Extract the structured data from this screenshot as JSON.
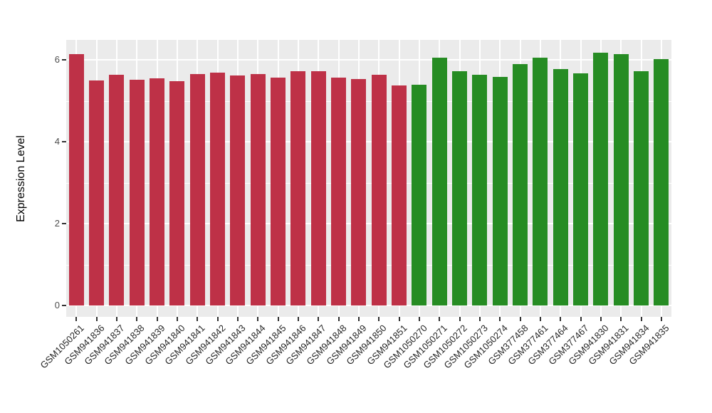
{
  "chart_data": {
    "type": "bar",
    "title": "",
    "xlabel": "",
    "ylabel": "Expression Level",
    "ylim": [
      0,
      6.5
    ],
    "yticks": [
      0,
      2,
      4,
      6
    ],
    "y_minor_ticks": [
      1,
      3,
      5
    ],
    "grid": true,
    "legend_position": "none",
    "panel_background_color": "#EBEBEB",
    "gridline_color": "#FFFFFF",
    "tick_color": "#333333",
    "axis_text_color": "#4D4D4D",
    "group_colors": {
      "red": "#BE3147",
      "green": "#268C23"
    },
    "samples": [
      {
        "id": "GSM1050261",
        "value": 6.14,
        "group": "red"
      },
      {
        "id": "GSM941836",
        "value": 5.49,
        "group": "red"
      },
      {
        "id": "GSM941837",
        "value": 5.64,
        "group": "red"
      },
      {
        "id": "GSM941838",
        "value": 5.52,
        "group": "red"
      },
      {
        "id": "GSM941839",
        "value": 5.54,
        "group": "red"
      },
      {
        "id": "GSM941840",
        "value": 5.48,
        "group": "red"
      },
      {
        "id": "GSM941841",
        "value": 5.66,
        "group": "red"
      },
      {
        "id": "GSM941842",
        "value": 5.68,
        "group": "red"
      },
      {
        "id": "GSM941843",
        "value": 5.61,
        "group": "red"
      },
      {
        "id": "GSM941844",
        "value": 5.66,
        "group": "red"
      },
      {
        "id": "GSM941845",
        "value": 5.57,
        "group": "red"
      },
      {
        "id": "GSM941846",
        "value": 5.72,
        "group": "red"
      },
      {
        "id": "GSM941847",
        "value": 5.73,
        "group": "red"
      },
      {
        "id": "GSM941848",
        "value": 5.57,
        "group": "red"
      },
      {
        "id": "GSM941849",
        "value": 5.53,
        "group": "red"
      },
      {
        "id": "GSM941850",
        "value": 5.63,
        "group": "red"
      },
      {
        "id": "GSM941851",
        "value": 5.38,
        "group": "red"
      },
      {
        "id": "GSM1050270",
        "value": 5.39,
        "group": "green"
      },
      {
        "id": "GSM1050271",
        "value": 6.06,
        "group": "green"
      },
      {
        "id": "GSM1050272",
        "value": 5.72,
        "group": "green"
      },
      {
        "id": "GSM1050273",
        "value": 5.63,
        "group": "green"
      },
      {
        "id": "GSM1050274",
        "value": 5.58,
        "group": "green"
      },
      {
        "id": "GSM377458",
        "value": 5.9,
        "group": "green"
      },
      {
        "id": "GSM377461",
        "value": 6.06,
        "group": "green"
      },
      {
        "id": "GSM377464",
        "value": 5.78,
        "group": "green"
      },
      {
        "id": "GSM377467",
        "value": 5.67,
        "group": "green"
      },
      {
        "id": "GSM941830",
        "value": 6.18,
        "group": "green"
      },
      {
        "id": "GSM941831",
        "value": 6.14,
        "group": "green"
      },
      {
        "id": "GSM941834",
        "value": 5.72,
        "group": "green"
      },
      {
        "id": "GSM941835",
        "value": 6.02,
        "group": "green"
      }
    ]
  }
}
